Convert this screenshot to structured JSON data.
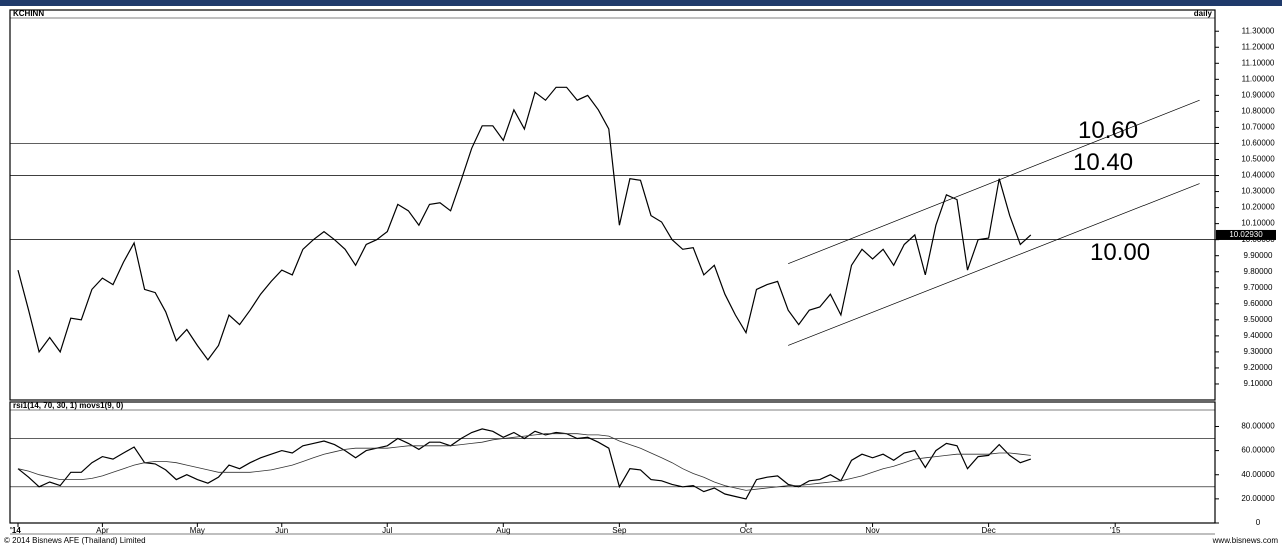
{
  "chart_data": [
    {
      "type": "line",
      "title": "KCHINN",
      "frequency_label": "daily",
      "series": [
        {
          "color": "#000000",
          "values": [
            9.81,
            9.56,
            9.3,
            9.39,
            9.3,
            9.51,
            9.5,
            9.69,
            9.76,
            9.72,
            9.86,
            9.98,
            9.69,
            9.67,
            9.55,
            9.37,
            9.44,
            9.34,
            9.25,
            9.34,
            9.53,
            9.47,
            9.56,
            9.66,
            9.74,
            9.81,
            9.78,
            9.94,
            10.0,
            10.05,
            10.0,
            9.94,
            9.84,
            9.97,
            10.0,
            10.05,
            10.22,
            10.18,
            10.09,
            10.22,
            10.23,
            10.18,
            10.37,
            10.57,
            10.71,
            10.71,
            10.62,
            10.81,
            10.69,
            10.92,
            10.87,
            10.95,
            10.95,
            10.87,
            10.9,
            10.81,
            10.69,
            10.09,
            10.38,
            10.37,
            10.15,
            10.11,
            10.0,
            9.94,
            9.95,
            9.78,
            9.84,
            9.66,
            9.53,
            9.42,
            9.69,
            9.72,
            9.74,
            9.56,
            9.47,
            9.56,
            9.58,
            9.66,
            9.53,
            9.84,
            9.94,
            9.88,
            9.94,
            9.84,
            9.97,
            10.03,
            9.78,
            10.09,
            10.28,
            10.25,
            9.81,
            10.0,
            10.01,
            10.38,
            10.15,
            9.97,
            10.03,
            null,
            null,
            null,
            null,
            null,
            null,
            null,
            null,
            null,
            null,
            null,
            null,
            null,
            null,
            null,
            null,
            null
          ]
        }
      ],
      "ylim": [
        9.0,
        11.37
      ],
      "yticks": [
        {
          "value": 9.1,
          "label": "9.10000"
        },
        {
          "value": 9.2,
          "label": "9.20000"
        },
        {
          "value": 9.3,
          "label": "9.30000"
        },
        {
          "value": 9.4,
          "label": "9.40000"
        },
        {
          "value": 9.5,
          "label": "9.50000"
        },
        {
          "value": 9.6,
          "label": "9.60000"
        },
        {
          "value": 9.7,
          "label": "9.70000"
        },
        {
          "value": 9.8,
          "label": "9.80000"
        },
        {
          "value": 9.9,
          "label": "9.90000"
        },
        {
          "value": 10.0,
          "label": "10.00000"
        },
        {
          "value": 10.1,
          "label": "10.10000"
        },
        {
          "value": 10.2,
          "label": "10.20000"
        },
        {
          "value": 10.3,
          "label": "10.30000"
        },
        {
          "value": 10.4,
          "label": "10.40000"
        },
        {
          "value": 10.5,
          "label": "10.50000"
        },
        {
          "value": 10.6,
          "label": "10.60000"
        },
        {
          "value": 10.7,
          "label": "10.70000"
        },
        {
          "value": 10.8,
          "label": "10.80000"
        },
        {
          "value": 10.9,
          "label": "10.90000"
        },
        {
          "value": 11.0,
          "label": "11.00000"
        },
        {
          "value": 11.1,
          "label": "11.10000"
        },
        {
          "value": 11.2,
          "label": "11.20000"
        },
        {
          "value": 11.3,
          "label": "11.30000"
        }
      ],
      "levels": [
        {
          "value": 10.6,
          "label": "10.60"
        },
        {
          "value": 10.4,
          "label": "10.40"
        },
        {
          "value": 10.0,
          "label": "10.00"
        }
      ],
      "trendlines": [
        {
          "x": [
            73,
            112
          ],
          "y": [
            9.85,
            10.87
          ]
        },
        {
          "x": [
            73,
            112
          ],
          "y": [
            9.34,
            10.35
          ]
        }
      ],
      "current_value": {
        "value": 10.0293,
        "label": "10.02930"
      }
    },
    {
      "type": "line",
      "title": "rsi1(14, 70, 30, 1) movs1(9, 0)",
      "categories": [
        "'14",
        null,
        null,
        null,
        null,
        null,
        null,
        null,
        "Apr",
        null,
        null,
        null,
        null,
        null,
        null,
        null,
        null,
        "May",
        null,
        null,
        null,
        null,
        null,
        null,
        null,
        "Jun",
        null,
        null,
        null,
        null,
        null,
        null,
        null,
        null,
        null,
        "Jul",
        null,
        null,
        null,
        null,
        null,
        null,
        null,
        null,
        null,
        null,
        "Aug",
        null,
        null,
        null,
        null,
        null,
        null,
        null,
        null,
        null,
        null,
        "Sep",
        null,
        null,
        null,
        null,
        null,
        null,
        null,
        null,
        null,
        null,
        null,
        "Oct",
        null,
        null,
        null,
        null,
        null,
        null,
        null,
        null,
        null,
        null,
        null,
        "Nov",
        null,
        null,
        null,
        null,
        null,
        null,
        null,
        null,
        null,
        null,
        "Dec",
        null,
        null,
        null,
        null,
        null,
        null,
        null,
        null,
        null,
        null,
        null,
        "'15",
        null,
        null,
        null,
        null,
        null,
        null,
        null,
        null,
        null
      ],
      "series": [
        {
          "color": "#000000",
          "values": [
            45,
            38,
            30,
            34,
            31,
            42,
            42,
            50,
            55,
            53,
            58,
            63,
            50,
            49,
            44,
            36,
            40,
            36,
            33,
            38,
            48,
            45,
            50,
            54,
            57,
            60,
            58,
            64,
            66,
            68,
            65,
            60,
            54,
            60,
            62,
            64,
            70,
            66,
            61,
            67,
            67,
            64,
            70,
            75,
            78,
            76,
            71,
            75,
            70,
            76,
            73,
            75,
            74,
            70,
            71,
            67,
            62,
            30,
            45,
            44,
            36,
            35,
            32,
            30,
            31,
            26,
            29,
            24,
            22,
            20,
            36,
            38,
            39,
            32,
            30,
            35,
            36,
            40,
            35,
            52,
            57,
            54,
            57,
            52,
            58,
            60,
            46,
            60,
            66,
            64,
            45,
            55,
            56,
            65,
            56,
            50,
            53,
            null,
            null,
            null,
            null,
            null,
            null,
            null,
            null,
            null,
            null,
            null,
            null,
            null,
            null,
            null,
            null,
            null
          ]
        },
        {
          "color": "#333333",
          "values": [
            45,
            43,
            40,
            38,
            36,
            36,
            36,
            37,
            39,
            42,
            45,
            48,
            50,
            51,
            51,
            50,
            48,
            46,
            44,
            42,
            42,
            42,
            42,
            43,
            44,
            46,
            48,
            51,
            54,
            57,
            59,
            61,
            62,
            62,
            62,
            62,
            63,
            64,
            64,
            64,
            64,
            64,
            65,
            66,
            67,
            69,
            70,
            71,
            72,
            73,
            74,
            74,
            74,
            74,
            73,
            73,
            72,
            68,
            65,
            62,
            58,
            54,
            50,
            45,
            41,
            38,
            34,
            31,
            29,
            27,
            28,
            29,
            30,
            31,
            31,
            32,
            33,
            34,
            35,
            37,
            39,
            42,
            45,
            47,
            50,
            53,
            54,
            55,
            56,
            57,
            57,
            57,
            57,
            58,
            58,
            57,
            56,
            null,
            null,
            null,
            null,
            null,
            null,
            null,
            null,
            null,
            null,
            null,
            null,
            null,
            null,
            null,
            null,
            null
          ]
        }
      ],
      "ylim": [
        0,
        92
      ],
      "yticks": [
        0,
        {
          "value": 20,
          "label": "20.00000"
        },
        {
          "value": 40,
          "label": "40.00000"
        },
        {
          "value": 60,
          "label": "60.00000"
        },
        {
          "value": 80,
          "label": "80.00000"
        }
      ],
      "levels": [
        70,
        30
      ]
    }
  ],
  "footer": {
    "copyright": "© 2014 Bisnews AFE (Thailand) Limited",
    "website": "www.bisnews.com"
  }
}
